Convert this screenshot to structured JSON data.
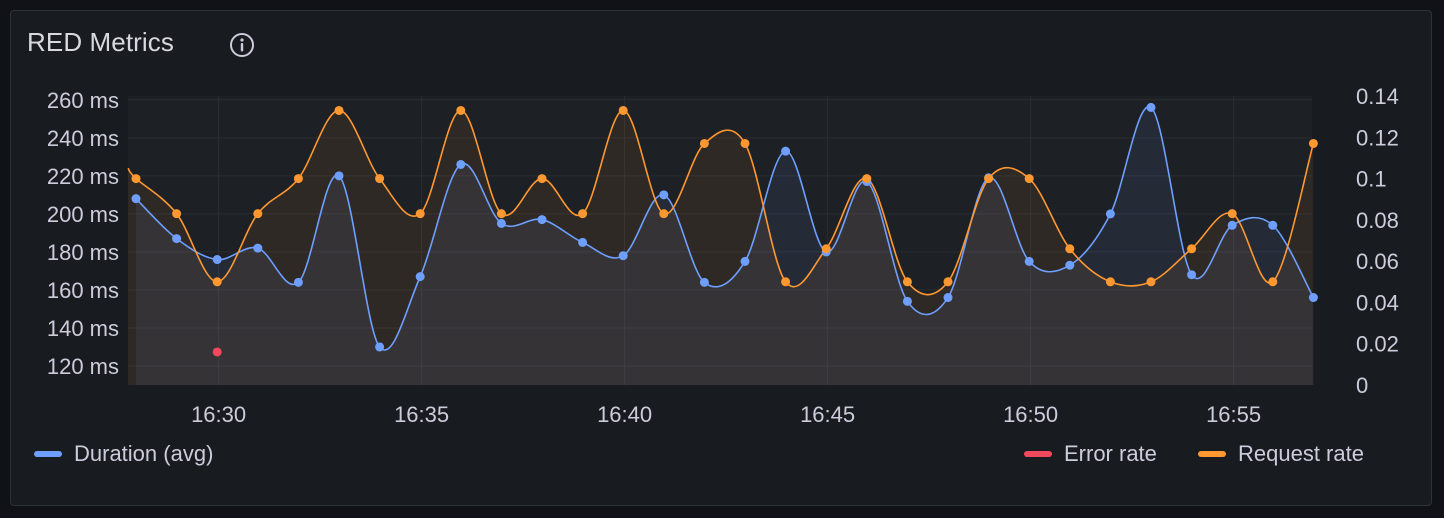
{
  "panel": {
    "title": "RED Metrics",
    "info_icon": "info-circle-icon"
  },
  "chart_data": {
    "type": "line",
    "x": [
      "16:29",
      "16:30",
      "16:31",
      "16:32",
      "16:33",
      "16:34",
      "16:35",
      "16:36",
      "16:37",
      "16:38",
      "16:39",
      "16:40",
      "16:41",
      "16:42",
      "16:43",
      "16:44",
      "16:45",
      "16:46",
      "16:47",
      "16:48",
      "16:49",
      "16:50",
      "16:51",
      "16:52",
      "16:53",
      "16:54",
      "16:55",
      "16:56",
      "16:57",
      "16:58"
    ],
    "x_tick_labels": [
      "16:30",
      "16:35",
      "16:40",
      "16:45",
      "16:50",
      "16:55"
    ],
    "y_left": {
      "ticks": [
        "120 ms",
        "140 ms",
        "160 ms",
        "180 ms",
        "200 ms",
        "220 ms",
        "240 ms",
        "260 ms"
      ],
      "range": [
        110,
        262
      ]
    },
    "y_right": {
      "ticks": [
        "0",
        "0.02",
        "0.04",
        "0.06",
        "0.08",
        "0.1",
        "0.12",
        "0.14"
      ],
      "range": [
        0,
        0.14
      ]
    },
    "grid": true,
    "legend_placement": "bottom",
    "series": [
      {
        "name": "Duration (avg)",
        "axis": "left",
        "color": "#6e9fff",
        "values": [
          208,
          187,
          176,
          182,
          164,
          220,
          130,
          167,
          226,
          195,
          197,
          185,
          178,
          210,
          164,
          175,
          233,
          180,
          217,
          154,
          156,
          219,
          175,
          173,
          200,
          256,
          168,
          194,
          194,
          156
        ]
      },
      {
        "name": "Error rate",
        "axis": "right",
        "color": "#f2495c",
        "points": [
          {
            "x": "16:31",
            "y": 0.016
          }
        ]
      },
      {
        "name": "Request rate",
        "axis": "right",
        "color": "#ff9830",
        "values": [
          0.1,
          0.083,
          0.05,
          0.083,
          0.1,
          0.133,
          0.1,
          0.083,
          0.133,
          0.083,
          0.1,
          0.083,
          0.133,
          0.083,
          0.117,
          0.117,
          0.05,
          0.066,
          0.1,
          0.05,
          0.05,
          0.1,
          0.1,
          0.066,
          0.05,
          0.05,
          0.066,
          0.083,
          0.05,
          0.117
        ],
        "leading_value": 0.105
      }
    ]
  }
}
